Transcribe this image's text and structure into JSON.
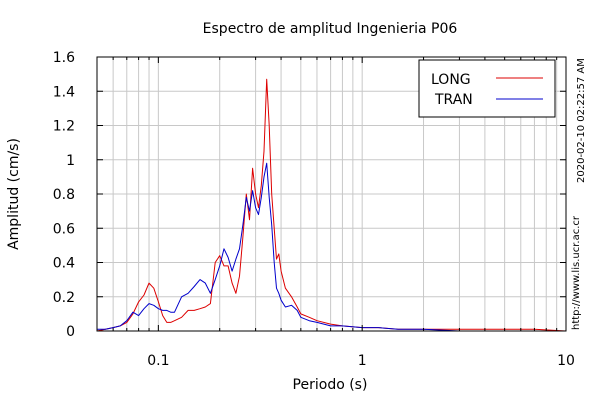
{
  "chart_data": {
    "type": "line",
    "title": "Espectro de amplitud Ingenieria P06",
    "xlabel": "Periodo (s)",
    "ylabel": "Amplitud (cm/s)",
    "x_scale": "log",
    "xlim": [
      0.05,
      10
    ],
    "ylim": [
      0,
      1.6
    ],
    "x_ticks": [
      0.1,
      1,
      10
    ],
    "x_tick_labels": [
      "0.1",
      "1",
      "10"
    ],
    "y_ticks": [
      0,
      0.2,
      0.4,
      0.6,
      0.8,
      1,
      1.2,
      1.4,
      1.6
    ],
    "y_tick_labels": [
      "0",
      "0.2",
      "0.4",
      "0.6",
      "0.8",
      "1",
      "1.2",
      "1.4",
      "1.6"
    ],
    "grid": true,
    "legend_position": "top-right",
    "series": [
      {
        "name": "LONG",
        "color": "#dd0000",
        "x": [
          0.05,
          0.055,
          0.06,
          0.065,
          0.07,
          0.075,
          0.08,
          0.085,
          0.09,
          0.095,
          0.1,
          0.105,
          0.11,
          0.115,
          0.12,
          0.13,
          0.14,
          0.15,
          0.16,
          0.17,
          0.18,
          0.19,
          0.2,
          0.21,
          0.22,
          0.23,
          0.24,
          0.25,
          0.26,
          0.27,
          0.28,
          0.29,
          0.3,
          0.31,
          0.32,
          0.33,
          0.34,
          0.35,
          0.36,
          0.37,
          0.38,
          0.39,
          0.4,
          0.42,
          0.45,
          0.48,
          0.5,
          0.55,
          0.6,
          0.7,
          0.8,
          1.0,
          1.2,
          1.5,
          2,
          3,
          5,
          7,
          10
        ],
        "y": [
          0.0,
          0.01,
          0.02,
          0.03,
          0.05,
          0.1,
          0.17,
          0.21,
          0.28,
          0.25,
          0.17,
          0.09,
          0.05,
          0.05,
          0.06,
          0.08,
          0.12,
          0.12,
          0.13,
          0.14,
          0.16,
          0.4,
          0.44,
          0.38,
          0.38,
          0.28,
          0.22,
          0.32,
          0.55,
          0.8,
          0.65,
          0.95,
          0.8,
          0.72,
          0.85,
          1.05,
          1.47,
          1.2,
          0.8,
          0.6,
          0.42,
          0.45,
          0.35,
          0.25,
          0.2,
          0.14,
          0.1,
          0.08,
          0.06,
          0.04,
          0.03,
          0.02,
          0.02,
          0.01,
          0.01,
          0.01,
          0.01,
          0.01,
          0.0
        ]
      },
      {
        "name": "TRAN",
        "color": "#0000cc",
        "x": [
          0.05,
          0.055,
          0.06,
          0.065,
          0.07,
          0.075,
          0.08,
          0.085,
          0.09,
          0.095,
          0.1,
          0.105,
          0.11,
          0.115,
          0.12,
          0.13,
          0.14,
          0.15,
          0.16,
          0.17,
          0.18,
          0.19,
          0.2,
          0.21,
          0.22,
          0.23,
          0.24,
          0.25,
          0.26,
          0.27,
          0.28,
          0.29,
          0.3,
          0.31,
          0.32,
          0.33,
          0.34,
          0.35,
          0.36,
          0.37,
          0.38,
          0.39,
          0.4,
          0.42,
          0.45,
          0.48,
          0.5,
          0.55,
          0.6,
          0.7,
          0.8,
          1.0,
          1.2,
          1.5,
          2,
          3,
          5,
          7,
          10
        ],
        "y": [
          0.01,
          0.01,
          0.02,
          0.03,
          0.06,
          0.11,
          0.09,
          0.13,
          0.16,
          0.15,
          0.13,
          0.12,
          0.12,
          0.11,
          0.11,
          0.2,
          0.22,
          0.26,
          0.3,
          0.28,
          0.22,
          0.3,
          0.38,
          0.48,
          0.43,
          0.35,
          0.42,
          0.48,
          0.62,
          0.78,
          0.7,
          0.82,
          0.72,
          0.68,
          0.78,
          0.9,
          0.98,
          0.78,
          0.62,
          0.4,
          0.25,
          0.22,
          0.18,
          0.14,
          0.15,
          0.12,
          0.08,
          0.06,
          0.05,
          0.03,
          0.03,
          0.02,
          0.02,
          0.01,
          0.01,
          0.0,
          0.0,
          0.0,
          0.0
        ]
      }
    ]
  },
  "side_text": {
    "timestamp": "2020-02-10 02:22:57 AM",
    "url": "http://www.lis.ucr.ac.cr"
  }
}
